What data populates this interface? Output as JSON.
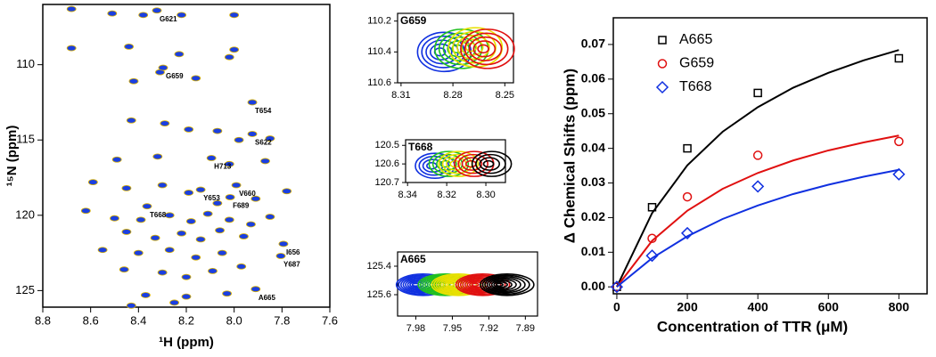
{
  "chart_data": [
    {
      "type": "nmr",
      "xlabel": "¹H  (ppm)",
      "ylabel": "¹⁵N  (ppm)",
      "color": "#1b3fe0",
      "xlim": [
        8.8,
        7.6
      ],
      "ylim": [
        126.1,
        106
      ],
      "xticks": [
        8.8,
        8.6,
        8.4,
        8.2,
        {
          "value": 8,
          "label": "8.0"
        },
        7.8,
        7.6
      ],
      "yticks": [
        110,
        115,
        120,
        125
      ],
      "x": [
        8.68,
        8.51,
        8.38,
        8.22,
        8.0,
        8.68,
        8.44,
        8.23,
        8.0,
        8.02,
        8.31,
        8.42,
        8.16,
        8.43,
        8.29,
        8.19,
        8.07,
        7.98,
        7.85,
        8.49,
        8.32,
        8.02,
        7.87,
        8.59,
        8.45,
        8.3,
        8.19,
        8.07,
        7.91,
        7.78,
        8.62,
        8.5,
        8.39,
        8.27,
        8.18,
        8.11,
        8.02,
        7.93,
        7.85,
        8.45,
        8.33,
        8.22,
        8.14,
        8.06,
        7.96,
        8.55,
        8.4,
        8.27,
        8.16,
        8.05,
        7.97,
        8.46,
        8.3,
        8.2,
        8.09,
        8.37,
        8.2,
        8.03,
        8.43,
        8.25
      ],
      "y": [
        106.3,
        106.6,
        106.7,
        106.7,
        106.7,
        108.9,
        108.8,
        109.3,
        109.0,
        109.5,
        110.5,
        111.1,
        110.9,
        113.7,
        113.9,
        114.3,
        114.4,
        115.0,
        114.9,
        116.3,
        116.1,
        116.6,
        116.4,
        117.8,
        118.2,
        118.0,
        118.5,
        119.2,
        118.9,
        118.4,
        119.7,
        120.2,
        120.3,
        120.0,
        120.4,
        119.9,
        120.3,
        120.6,
        120.1,
        121.1,
        121.5,
        121.2,
        121.6,
        121.0,
        121.4,
        122.3,
        122.5,
        122.3,
        122.8,
        122.5,
        123.4,
        123.6,
        123.8,
        124.1,
        123.7,
        125.3,
        125.4,
        125.2,
        126.0,
        125.8
      ],
      "peaks": [
        {
          "label": "G621",
          "x": 8.323,
          "y": 106.4
        },
        {
          "label": "G659",
          "x": 8.297,
          "y": 110.2
        },
        {
          "label": "T654",
          "x": 7.924,
          "y": 112.5
        },
        {
          "label": "S622",
          "x": 7.924,
          "y": 114.6
        },
        {
          "label": "H713",
          "x": 8.095,
          "y": 116.2
        },
        {
          "label": "V660",
          "x": 7.991,
          "y": 118.0
        },
        {
          "label": "Y653",
          "x": 8.14,
          "y": 118.3
        },
        {
          "label": "F689",
          "x": 8.017,
          "y": 118.8
        },
        {
          "label": "T668",
          "x": 8.364,
          "y": 119.4
        },
        {
          "label": "I656",
          "x": 7.794,
          "y": 121.9
        },
        {
          "label": "Y687",
          "x": 7.805,
          "y": 122.7
        },
        {
          "label": "A665",
          "x": 7.91,
          "y": 124.9
        }
      ]
    },
    {
      "type": "contour",
      "title": "G659",
      "xlim": [
        8.312,
        8.245
      ],
      "ylim": [
        110.6,
        110.15
      ],
      "xticks": [
        8.31,
        8.28,
        8.25
      ],
      "yticks": [
        110.2,
        110.4,
        110.6
      ],
      "series": [
        {
          "color": "#1030e0",
          "x": 8.285,
          "y": 110.4
        },
        {
          "color": "#20c020",
          "x": 8.275,
          "y": 110.38
        },
        {
          "color": "#e8e000",
          "x": 8.267,
          "y": 110.37
        },
        {
          "color": "#e01010",
          "x": 8.26,
          "y": 110.38
        }
      ]
    },
    {
      "type": "contour",
      "title": "T668",
      "xlim": [
        8.341,
        8.29
      ],
      "ylim": [
        120.7,
        120.47
      ],
      "xticks": [
        8.34,
        8.32,
        {
          "value": 8.3,
          "label": "8.30"
        }
      ],
      "yticks": [
        120.5,
        120.6,
        120.7
      ],
      "series": [
        {
          "color": "#1030e0",
          "x": 8.326,
          "y": 120.61
        },
        {
          "color": "#20c020",
          "x": 8.319,
          "y": 120.6
        },
        {
          "color": "#e8e000",
          "x": 8.314,
          "y": 120.6
        },
        {
          "color": "#e01010",
          "x": 8.306,
          "y": 120.6
        },
        {
          "color": "#000000",
          "x": 8.297,
          "y": 120.6
        }
      ]
    },
    {
      "type": "contour",
      "title": "A665",
      "xlim": [
        7.995,
        7.88
      ],
      "ylim": [
        125.75,
        125.3
      ],
      "xticks": [
        7.98,
        7.95,
        7.92,
        7.89
      ],
      "yticks": [
        125.4,
        125.6
      ],
      "series": [
        {
          "color": "#1030e0",
          "x": 7.974,
          "y": 125.53
        },
        {
          "color": "#20c020",
          "x": 7.956,
          "y": 125.53
        },
        {
          "color": "#e8e000",
          "x": 7.945,
          "y": 125.53
        },
        {
          "color": "#e01010",
          "x": 7.925,
          "y": 125.53
        },
        {
          "color": "#000000",
          "x": 7.905,
          "y": 125.53
        }
      ]
    },
    {
      "type": "scatter",
      "xlabel": "Concentration of TTR (μM)",
      "ylabel": "Δ Chemical Shifts (ppm)",
      "xlim": [
        -10,
        880
      ],
      "ylim": [
        -0.002,
        0.0777
      ],
      "xticks": [
        0,
        200,
        400,
        600,
        800
      ],
      "yticks": [
        {
          "value": 0,
          "label": "0.00"
        },
        {
          "value": 0.01,
          "label": "0.01"
        },
        {
          "value": 0.02,
          "label": "0.02"
        },
        {
          "value": 0.03,
          "label": "0.03"
        },
        {
          "value": 0.04,
          "label": "0.04"
        },
        {
          "value": 0.05,
          "label": "0.05"
        },
        {
          "value": 0.06,
          "label": "0.06"
        },
        {
          "value": 0.07,
          "label": "0.07"
        }
      ],
      "series": [
        {
          "name": "A665",
          "color": "#000000",
          "marker": "square",
          "x": [
            0,
            100,
            200,
            400,
            800
          ],
          "values": [
            0,
            0.023,
            0.04,
            0.056,
            0.066
          ],
          "fit": {
            "x": [
              0,
              100,
              200,
              300,
              400,
              500,
              600,
              700,
              800
            ],
            "values": [
              0,
              0.0213,
              0.0351,
              0.0448,
              0.0519,
              0.0575,
              0.0618,
              0.0654,
              0.0684
            ]
          }
        },
        {
          "name": "G659",
          "color": "#e01010",
          "marker": "circle",
          "x": [
            0,
            100,
            200,
            400,
            800
          ],
          "values": [
            0,
            0.014,
            0.026,
            0.038,
            0.042
          ],
          "fit": {
            "x": [
              0,
              100,
              200,
              300,
              400,
              500,
              600,
              700,
              800
            ],
            "values": [
              0,
              0.0133,
              0.022,
              0.0283,
              0.0329,
              0.0365,
              0.0394,
              0.0417,
              0.0437
            ]
          }
        },
        {
          "name": "T668",
          "color": "#1030e0",
          "marker": "diamond",
          "x": [
            0,
            100,
            200,
            400,
            800
          ],
          "values": [
            0,
            0.009,
            0.0155,
            0.029,
            0.0325
          ],
          "fit": {
            "x": [
              0,
              100,
              200,
              300,
              400,
              500,
              600,
              700,
              800
            ],
            "values": [
              0,
              0.0083,
              0.0146,
              0.0196,
              0.0235,
              0.0268,
              0.0295,
              0.0318,
              0.0338
            ]
          }
        }
      ]
    }
  ]
}
